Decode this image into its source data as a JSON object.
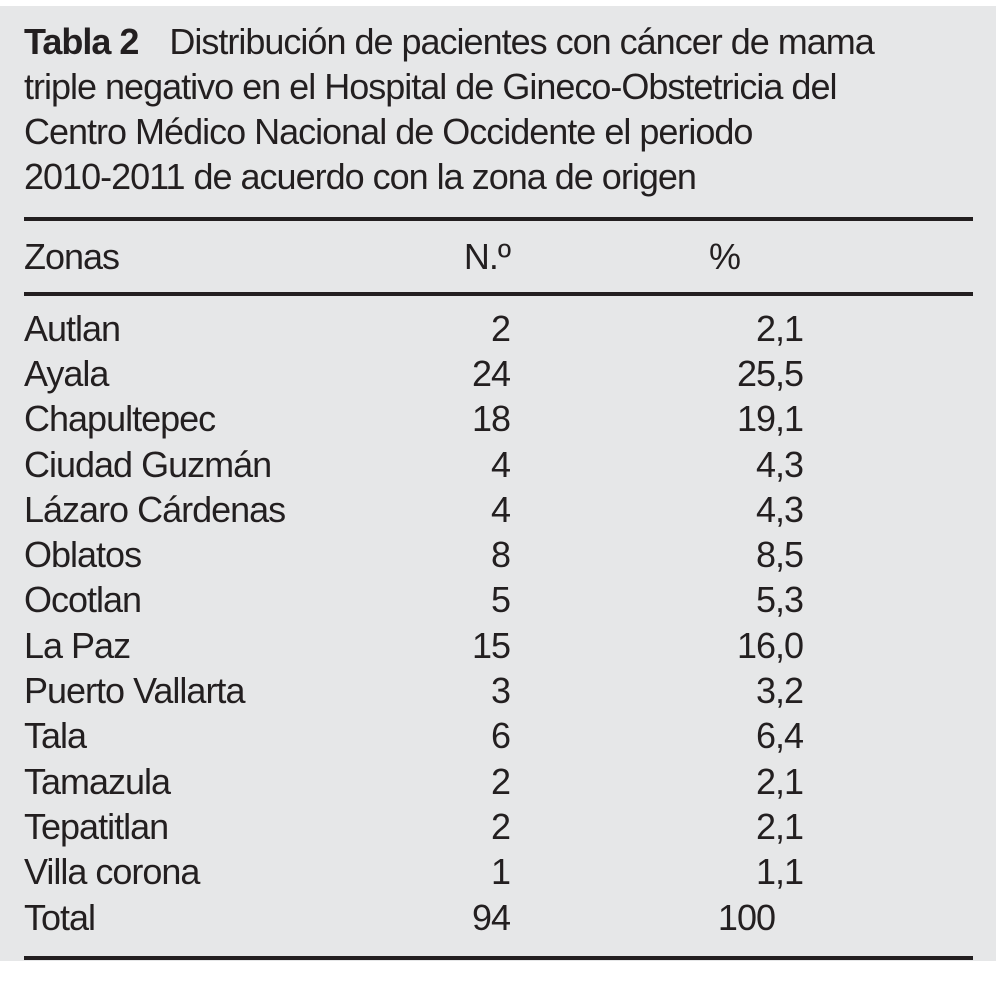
{
  "colors": {
    "panel_bg": "#e6e7e8",
    "text": "#231f20",
    "rule": "#231f20",
    "page_bg": "#ffffff"
  },
  "title": {
    "label": "Tabla 2",
    "line1": "Distribución de pacientes con cáncer de mama",
    "line2": "triple negativo en el Hospital de Gineco-Obstetricia del",
    "line3": "Centro Médico Nacional de Occidente el periodo",
    "line4": "2010-2011 de acuerdo con la zona de origen"
  },
  "table": {
    "columns": {
      "zona": "Zonas",
      "n": "N.º",
      "pct": "%"
    },
    "rows": [
      {
        "zona": "Autlan",
        "n": "2",
        "pct": "2,1"
      },
      {
        "zona": "Ayala",
        "n": "24",
        "pct": "25,5"
      },
      {
        "zona": "Chapultepec",
        "n": "18",
        "pct": "19,1"
      },
      {
        "zona": "Ciudad Guzmán",
        "n": "4",
        "pct": "4,3"
      },
      {
        "zona": "Lázaro Cárdenas",
        "n": "4",
        "pct": "4,3"
      },
      {
        "zona": "Oblatos",
        "n": "8",
        "pct": "8,5"
      },
      {
        "zona": "Ocotlan",
        "n": "5",
        "pct": "5,3"
      },
      {
        "zona": "La Paz",
        "n": "15",
        "pct": "16,0"
      },
      {
        "zona": "Puerto Vallarta",
        "n": "3",
        "pct": "3,2"
      },
      {
        "zona": "Tala",
        "n": "6",
        "pct": "6,4"
      },
      {
        "zona": "Tamazula",
        "n": "2",
        "pct": "2,1"
      },
      {
        "zona": "Tepatitlan",
        "n": "2",
        "pct": "2,1"
      },
      {
        "zona": "Villa corona",
        "n": "1",
        "pct": "1,1"
      },
      {
        "zona": "Total",
        "n": "94",
        "pct": "100"
      }
    ]
  }
}
